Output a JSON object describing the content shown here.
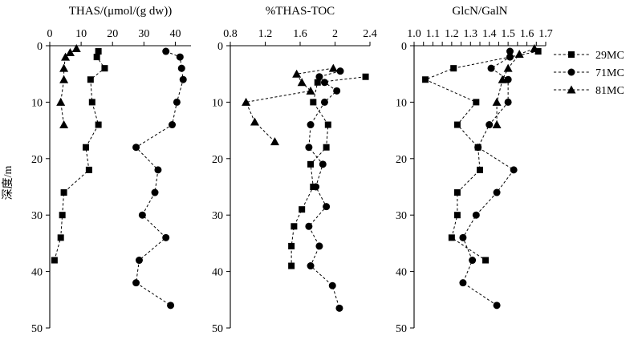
{
  "y_axis_label": "深度/m",
  "legend": [
    "29MC",
    "71MC",
    "81MC"
  ],
  "chart_data": [
    {
      "type": "scatter",
      "title": "THAS/(μmol/(g dw))",
      "xlim": [
        0,
        45
      ],
      "xticks": [
        0,
        10,
        20,
        30,
        40
      ],
      "ylim": [
        0,
        50
      ],
      "yticks": [
        0,
        10,
        20,
        30,
        40,
        50
      ],
      "y_inverted": true,
      "series": [
        {
          "name": "29MC",
          "marker": "square",
          "points": [
            [
              15.5,
              1
            ],
            [
              15,
              2
            ],
            [
              17.5,
              4
            ],
            [
              13,
              6
            ],
            [
              13.5,
              10
            ],
            [
              15.5,
              14
            ],
            [
              11.5,
              18
            ],
            [
              12.5,
              22
            ],
            [
              4.5,
              26
            ],
            [
              4,
              30
            ],
            [
              3.5,
              34
            ],
            [
              1.5,
              38
            ]
          ]
        },
        {
          "name": "71MC",
          "marker": "circle",
          "points": [
            [
              37,
              1
            ],
            [
              41.5,
              2
            ],
            [
              42,
              4
            ],
            [
              42.5,
              6
            ],
            [
              40.5,
              10
            ],
            [
              39,
              14
            ],
            [
              27.5,
              18
            ],
            [
              34.5,
              22
            ],
            [
              33.5,
              26
            ],
            [
              29.5,
              30
            ],
            [
              37,
              34
            ],
            [
              28.5,
              38
            ],
            [
              27.5,
              42
            ],
            [
              38.5,
              46
            ]
          ]
        },
        {
          "name": "81MC",
          "marker": "triangle",
          "points": [
            [
              8.5,
              0.5
            ],
            [
              6.5,
              1.2
            ],
            [
              5,
              2
            ],
            [
              4.5,
              4
            ],
            [
              4.5,
              6
            ],
            [
              3.5,
              10
            ],
            [
              4.5,
              14
            ]
          ]
        }
      ]
    },
    {
      "type": "scatter",
      "title": "%THAS-TOC",
      "xlim": [
        0.8,
        2.4
      ],
      "xticks": [
        0.8,
        1.2,
        1.6,
        2.0,
        2.4
      ],
      "ylim": [
        0,
        50
      ],
      "yticks": [
        0,
        10,
        20,
        30,
        40,
        50
      ],
      "y_inverted": true,
      "series": [
        {
          "name": "29MC",
          "marker": "square",
          "points": [
            [
              2.35,
              5.5
            ],
            [
              1.8,
              6.5
            ],
            [
              1.75,
              10
            ],
            [
              1.92,
              14
            ],
            [
              1.9,
              18
            ],
            [
              1.72,
              21
            ],
            [
              1.75,
              25
            ],
            [
              1.62,
              29
            ],
            [
              1.53,
              32
            ],
            [
              1.5,
              35.5
            ],
            [
              1.5,
              39
            ]
          ]
        },
        {
          "name": "71MC",
          "marker": "circle",
          "points": [
            [
              2.06,
              4.5
            ],
            [
              1.82,
              5.5
            ],
            [
              1.88,
              6.5
            ],
            [
              2.02,
              8
            ],
            [
              1.88,
              10
            ],
            [
              1.72,
              14
            ],
            [
              1.7,
              18
            ],
            [
              1.86,
              21
            ],
            [
              1.78,
              25
            ],
            [
              1.9,
              28.5
            ],
            [
              1.7,
              32
            ],
            [
              1.82,
              35.5
            ],
            [
              1.72,
              39
            ],
            [
              1.97,
              42.5
            ],
            [
              2.05,
              46.5
            ]
          ]
        },
        {
          "name": "81MC",
          "marker": "triangle",
          "points": [
            [
              1.98,
              4
            ],
            [
              1.56,
              5
            ],
            [
              1.62,
              6.5
            ],
            [
              1.72,
              8
            ],
            [
              0.98,
              10
            ],
            [
              1.08,
              13.5
            ],
            [
              1.31,
              17
            ]
          ]
        }
      ]
    },
    {
      "type": "scatter",
      "title": "GlcN/GalN",
      "xlim": [
        1.0,
        1.7
      ],
      "xticks": [
        1.0,
        1.05,
        1.1,
        1.15,
        1.2,
        1.25,
        1.3,
        1.35,
        1.4,
        1.45,
        1.5,
        1.55,
        1.6,
        1.65,
        1.7
      ],
      "xtick_labels": [
        "1.0",
        "",
        "1.1",
        "",
        "1.2",
        "",
        "1.3",
        "",
        "1.4",
        "",
        "1.5",
        "",
        "1.6",
        "",
        "1.7"
      ],
      "ylim": [
        0,
        50
      ],
      "yticks": [
        0,
        10,
        20,
        30,
        40,
        50
      ],
      "y_inverted": true,
      "series": [
        {
          "name": "29MC",
          "marker": "square",
          "points": [
            [
              1.66,
              1
            ],
            [
              1.21,
              4
            ],
            [
              1.06,
              6
            ],
            [
              1.33,
              10
            ],
            [
              1.23,
              14
            ],
            [
              1.34,
              18
            ],
            [
              1.35,
              22
            ],
            [
              1.23,
              26
            ],
            [
              1.23,
              30
            ],
            [
              1.2,
              34
            ],
            [
              1.38,
              38
            ]
          ]
        },
        {
          "name": "71MC",
          "marker": "circle",
          "points": [
            [
              1.51,
              1
            ],
            [
              1.51,
              2
            ],
            [
              1.41,
              4
            ],
            [
              1.5,
              6
            ],
            [
              1.5,
              10
            ],
            [
              1.4,
              14
            ],
            [
              1.34,
              18
            ],
            [
              1.53,
              22
            ],
            [
              1.44,
              26
            ],
            [
              1.33,
              30
            ],
            [
              1.26,
              34
            ],
            [
              1.31,
              38
            ],
            [
              1.26,
              42
            ],
            [
              1.44,
              46
            ]
          ]
        },
        {
          "name": "81MC",
          "marker": "triangle",
          "points": [
            [
              1.64,
              0.5
            ],
            [
              1.56,
              1.5
            ],
            [
              1.5,
              4
            ],
            [
              1.47,
              6
            ],
            [
              1.44,
              10
            ],
            [
              1.44,
              14
            ]
          ]
        }
      ]
    }
  ]
}
